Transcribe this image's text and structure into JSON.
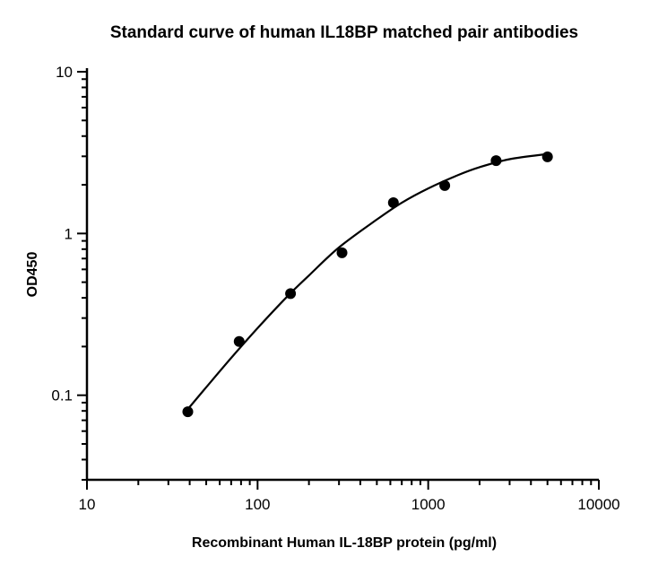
{
  "chart_data": {
    "type": "scatter",
    "title": "Standard curve of human IL18BP matched pair antibodies",
    "xlabel": "Recombinant Human IL-18BP protein (pg/ml)",
    "ylabel": "OD450",
    "x_scale": "log",
    "y_scale": "log",
    "xlim": [
      10,
      10000
    ],
    "ylim": [
      0.03,
      10
    ],
    "x_ticks": [
      {
        "value": 10,
        "label": "10"
      },
      {
        "value": 100,
        "label": "100"
      },
      {
        "value": 1000,
        "label": "1000"
      },
      {
        "value": 10000,
        "label": "10000"
      }
    ],
    "y_ticks": [
      {
        "value": 0.1,
        "label": "0.1"
      },
      {
        "value": 1,
        "label": "1"
      },
      {
        "value": 10,
        "label": "10"
      }
    ],
    "grid": false,
    "legend": "none",
    "series": [
      {
        "x": [
          39,
          78,
          156,
          312.5,
          625,
          1250,
          2500,
          5000
        ],
        "y": [
          0.079,
          0.215,
          0.425,
          0.76,
          1.55,
          1.98,
          2.82,
          2.98
        ],
        "fit_curve": {
          "x": [
            39,
            50,
            70,
            100,
            150,
            200,
            300,
            500,
            700,
            1000,
            1500,
            2000,
            3000,
            5000
          ],
          "y": [
            0.082,
            0.112,
            0.17,
            0.26,
            0.41,
            0.55,
            0.82,
            1.22,
            1.55,
            1.9,
            2.3,
            2.57,
            2.88,
            3.1
          ]
        }
      }
    ]
  }
}
